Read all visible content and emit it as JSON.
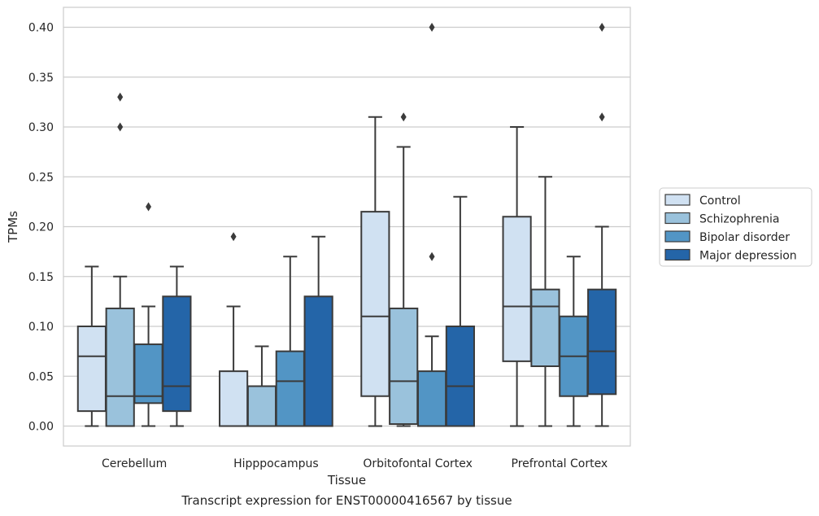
{
  "chart_data": {
    "type": "box",
    "xlabel": "Tissue",
    "ylabel": "TPMs",
    "caption": "Transcript expression for ENST00000416567 by tissue",
    "ylim": [
      -0.02,
      0.42
    ],
    "yticks": [
      "0.00",
      "0.05",
      "0.10",
      "0.15",
      "0.20",
      "0.25",
      "0.30",
      "0.35",
      "0.40"
    ],
    "grid": true,
    "legend_position": "right",
    "categories": [
      "Cerebellum",
      "Hipppocampus",
      "Orbitofontal Cortex",
      "Prefrontal Cortex"
    ],
    "series": [
      {
        "name": "Control",
        "color": "#d0e1f2",
        "boxes": [
          {
            "whislo": 0.0,
            "q1": 0.015,
            "med": 0.07,
            "q3": 0.1,
            "whishi": 0.16,
            "fliers": []
          },
          {
            "whislo": 0.0,
            "q1": 0.0,
            "med": 0.0,
            "q3": 0.055,
            "whishi": 0.12,
            "fliers": [
              0.19
            ]
          },
          {
            "whislo": 0.0,
            "q1": 0.03,
            "med": 0.11,
            "q3": 0.215,
            "whishi": 0.31,
            "fliers": []
          },
          {
            "whislo": 0.0,
            "q1": 0.065,
            "med": 0.12,
            "q3": 0.21,
            "whishi": 0.3,
            "fliers": []
          }
        ]
      },
      {
        "name": "Schizophrenia",
        "color": "#9ac2dc",
        "boxes": [
          {
            "whislo": 0.0,
            "q1": 0.0,
            "med": 0.03,
            "q3": 0.118,
            "whishi": 0.15,
            "fliers": [
              0.3,
              0.33
            ]
          },
          {
            "whislo": 0.0,
            "q1": 0.0,
            "med": 0.0,
            "q3": 0.04,
            "whishi": 0.08,
            "fliers": []
          },
          {
            "whislo": 0.0,
            "q1": 0.002,
            "med": 0.045,
            "q3": 0.118,
            "whishi": 0.28,
            "fliers": [
              0.31
            ]
          },
          {
            "whislo": 0.0,
            "q1": 0.06,
            "med": 0.12,
            "q3": 0.137,
            "whishi": 0.25,
            "fliers": []
          }
        ]
      },
      {
        "name": "Bipolar disorder",
        "color": "#5295c5",
        "boxes": [
          {
            "whislo": 0.0,
            "q1": 0.023,
            "med": 0.03,
            "q3": 0.082,
            "whishi": 0.12,
            "fliers": [
              0.22
            ]
          },
          {
            "whislo": 0.0,
            "q1": 0.0,
            "med": 0.045,
            "q3": 0.075,
            "whishi": 0.17,
            "fliers": []
          },
          {
            "whislo": 0.0,
            "q1": 0.0,
            "med": 0.0,
            "q3": 0.055,
            "whishi": 0.09,
            "fliers": [
              0.17,
              0.4
            ]
          },
          {
            "whislo": 0.0,
            "q1": 0.03,
            "med": 0.07,
            "q3": 0.11,
            "whishi": 0.17,
            "fliers": []
          }
        ]
      },
      {
        "name": "Major depression",
        "color": "#2465a8",
        "boxes": [
          {
            "whislo": 0.0,
            "q1": 0.015,
            "med": 0.04,
            "q3": 0.13,
            "whishi": 0.16,
            "fliers": []
          },
          {
            "whislo": 0.0,
            "q1": 0.0,
            "med": 0.0,
            "q3": 0.13,
            "whishi": 0.19,
            "fliers": []
          },
          {
            "whislo": 0.0,
            "q1": 0.0,
            "med": 0.04,
            "q3": 0.1,
            "whishi": 0.23,
            "fliers": []
          },
          {
            "whislo": 0.0,
            "q1": 0.032,
            "med": 0.075,
            "q3": 0.137,
            "whishi": 0.2,
            "fliers": [
              0.31,
              0.4
            ]
          }
        ]
      }
    ]
  }
}
